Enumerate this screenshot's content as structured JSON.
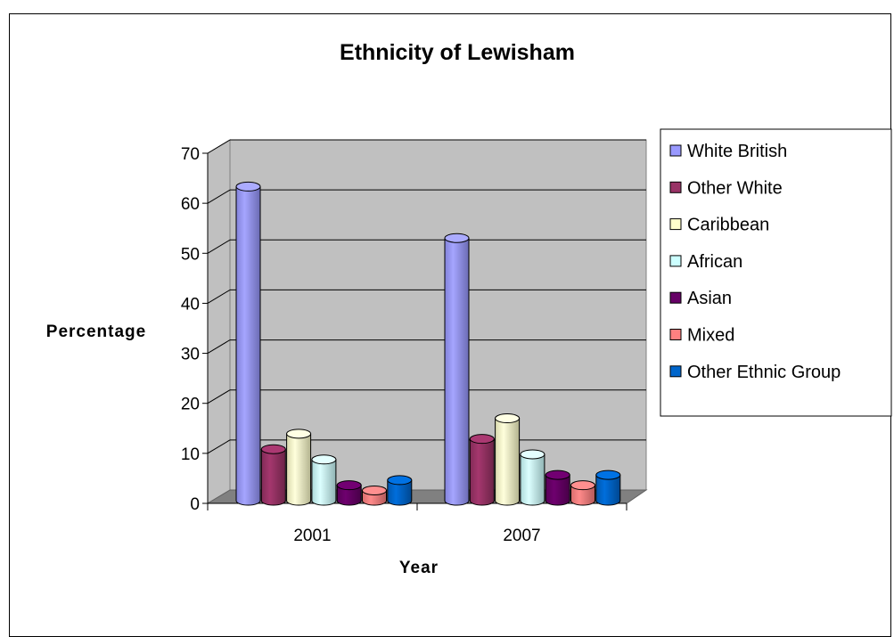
{
  "chart_data": {
    "type": "bar",
    "title": "Ethnicity of Lewisham",
    "xlabel": "Year",
    "ylabel": "Percentage",
    "ylim": [
      0,
      70
    ],
    "yticks": [
      "0",
      "10",
      "20",
      "30",
      "40",
      "50",
      "60",
      "70"
    ],
    "categories": [
      "2001",
      "2007"
    ],
    "grid": true,
    "legend_position": "right",
    "series": [
      {
        "name": "White British",
        "color": "#9999ff",
        "values": [
          61,
          51
        ]
      },
      {
        "name": "Other White",
        "color": "#993366",
        "values": [
          10,
          12
        ]
      },
      {
        "name": "Caribbean",
        "color": "#ffffcc",
        "values": [
          13,
          16
        ]
      },
      {
        "name": "African",
        "color": "#ccffff",
        "values": [
          8,
          9
        ]
      },
      {
        "name": "Asian",
        "color": "#660066",
        "values": [
          3,
          5
        ]
      },
      {
        "name": "Mixed",
        "color": "#ff8080",
        "values": [
          2,
          3
        ]
      },
      {
        "name": "Other Ethnic Group",
        "color": "#0066cc",
        "values": [
          4,
          5
        ]
      }
    ]
  }
}
